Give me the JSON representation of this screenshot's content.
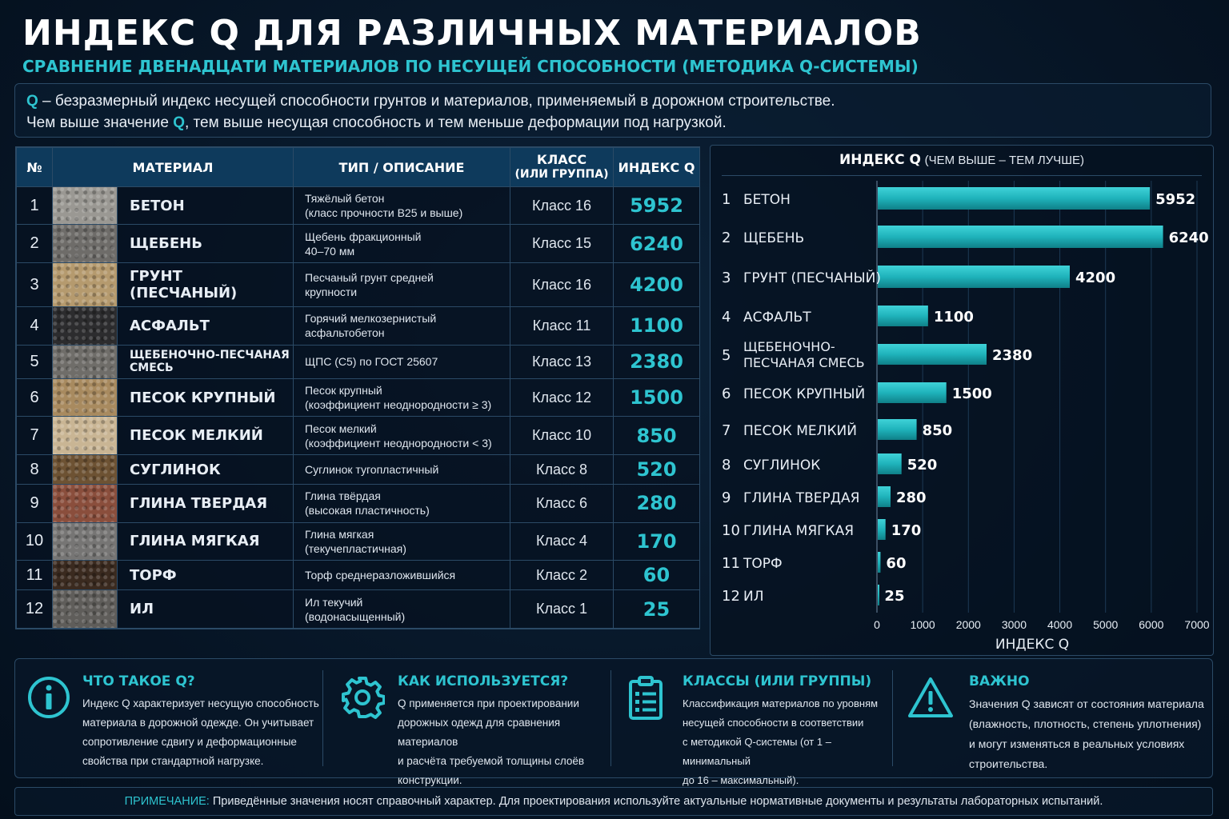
{
  "header": {
    "title": "ИНДЕКС Q ДЛЯ РАЗЛИЧНЫХ МАТЕРИАЛОВ",
    "subtitle": "СРАВНЕНИЕ ДВЕНАДЦАТИ МАТЕРИАЛОВ ПО НЕСУЩЕЙ СПОСОБНОСТИ (МЕТОДИКА Q-СИСТЕМЫ)"
  },
  "intro": {
    "q1": "Q",
    "line1": " – безразмерный индекс несущей способности грунтов и материалов, применяемый в дорожном строительстве.",
    "line2a": "Чем выше значение ",
    "q2": "Q",
    "line2b": ", тем выше несущая способность и тем меньше деформации под нагрузкой."
  },
  "table": {
    "headers": {
      "num": "№",
      "material": "МАТЕРИАЛ",
      "type": "ТИП / ОПИСАНИЕ",
      "class_line1": "КЛАСС",
      "class_line2": "(ИЛИ ГРУППА)",
      "q": "ИНДЕКС Q"
    },
    "rows": [
      {
        "num": "1",
        "material": "БЕТОН",
        "type1": "Тяжёлый бетон",
        "type2": "(класс прочности B25 и выше)",
        "cls": "Класс 16",
        "q": "5952"
      },
      {
        "num": "2",
        "material": "ЩЕБЕНЬ",
        "type1": "Щебень фракционный",
        "type2": "40–70 мм",
        "cls": "Класс 15",
        "q": "6240"
      },
      {
        "num": "3",
        "material": "ГРУНТ (ПЕСЧАНЫЙ)",
        "type1": "Песчаный грунт средней",
        "type2": "крупности",
        "cls": "Класс 16",
        "q": "4200"
      },
      {
        "num": "4",
        "material": "АСФАЛЬТ",
        "type1": "Горячий мелкозернистый",
        "type2": "асфальтобетон",
        "cls": "Класс 11",
        "q": "1100"
      },
      {
        "num": "5",
        "material": "ЩЕБЕНОЧНО-ПЕСЧАНАЯ СМЕСЬ",
        "type1": "ЩПС (С5) по ГОСТ 25607",
        "type2": "",
        "cls": "Класс 13",
        "q": "2380"
      },
      {
        "num": "6",
        "material": "ПЕСОК КРУПНЫЙ",
        "type1": "Песок крупный",
        "type2": "(коэффициент неоднородности ≥ 3)",
        "cls": "Класс 12",
        "q": "1500"
      },
      {
        "num": "7",
        "material": "ПЕСОК МЕЛКИЙ",
        "type1": "Песок мелкий",
        "type2": "(коэффициент неоднородности < 3)",
        "cls": "Класс 10",
        "q": "850"
      },
      {
        "num": "8",
        "material": "СУГЛИНОК",
        "type1": "Суглинок тугопластичный",
        "type2": "",
        "cls": "Класс 8",
        "q": "520"
      },
      {
        "num": "9",
        "material": "ГЛИНА ТВЕРДАЯ",
        "type1": "Глина твёрдая",
        "type2": "(высокая пластичность)",
        "cls": "Класс 6",
        "q": "280"
      },
      {
        "num": "10",
        "material": "ГЛИНА МЯГКАЯ",
        "type1": "Глина мягкая",
        "type2": "(текучепластичная)",
        "cls": "Класс 4",
        "q": "170"
      },
      {
        "num": "11",
        "material": "ТОРФ",
        "type1": "Торф среднеразложившийся",
        "type2": "",
        "cls": "Класс 2",
        "q": "60"
      },
      {
        "num": "12",
        "material": "ИЛ",
        "type1": "Ил текучий",
        "type2": "(водонасыщенный)",
        "cls": "Класс 1",
        "q": "25"
      }
    ],
    "swatch_colors": [
      "#9a9893",
      "#6e6c69",
      "#b59a6e",
      "#2c2c2e",
      "#6f6d69",
      "#a88a5f",
      "#c9b594",
      "#6d5233",
      "#8a4e3c",
      "#767574",
      "#3a2a1f",
      "#5f5d5a"
    ]
  },
  "chart_data": {
    "type": "bar",
    "orientation": "horizontal",
    "title": "ИНДЕКС Q",
    "title_note": "(ЧЕМ ВЫШЕ – ТЕМ ЛУЧШЕ)",
    "xlabel": "ИНДЕКС Q",
    "xlim": [
      0,
      7000
    ],
    "xticks": [
      "0",
      "1000",
      "2000",
      "3000",
      "4000",
      "5000",
      "6000",
      "7000"
    ],
    "categories": [
      {
        "num": "1",
        "label": [
          "БЕТОН"
        ]
      },
      {
        "num": "2",
        "label": [
          "ЩЕБЕНЬ"
        ]
      },
      {
        "num": "3",
        "label": [
          "ГРУНТ (ПЕСЧАНЫЙ)"
        ]
      },
      {
        "num": "4",
        "label": [
          "АСФАЛЬТ"
        ]
      },
      {
        "num": "5",
        "label": [
          "ЩЕБЕНОЧНО-",
          "ПЕСЧАНАЯ СМЕСЬ"
        ]
      },
      {
        "num": "6",
        "label": [
          "ПЕСОК КРУПНЫЙ"
        ]
      },
      {
        "num": "7",
        "label": [
          "ПЕСОК МЕЛКИЙ"
        ]
      },
      {
        "num": "8",
        "label": [
          "СУГЛИНОК"
        ]
      },
      {
        "num": "9",
        "label": [
          "ГЛИНА ТВЕРДАЯ"
        ]
      },
      {
        "num": "10",
        "label": [
          "ГЛИНА МЯГКАЯ"
        ]
      },
      {
        "num": "11",
        "label": [
          "ТОРФ"
        ]
      },
      {
        "num": "12",
        "label": [
          "ИЛ"
        ]
      }
    ],
    "values": [
      5952,
      6240,
      4200,
      1100,
      2380,
      1500,
      850,
      520,
      280,
      170,
      60,
      25
    ],
    "bar_color": "#1fb3bb",
    "grid": true
  },
  "info": [
    {
      "title": "ЧТО ТАКОЕ Q?",
      "icon": "info-icon",
      "lines": [
        "Индекс Q характеризует несущую способность",
        "материала в дорожной одежде. Он учитывает",
        "сопротивление сдвигу и деформационные",
        "свойства при стандартной нагрузке."
      ]
    },
    {
      "title": "КАК ИСПОЛЬЗУЕТСЯ?",
      "icon": "gear-icon",
      "lines": [
        "Q применяется при проектировании",
        "дорожных одежд для сравнения материалов",
        "и расчёта требуемой толщины слоёв",
        "конструкции."
      ]
    },
    {
      "title": "КЛАССЫ (ИЛИ ГРУППЫ)",
      "icon": "clipboard-icon",
      "lines": [
        "Классификация материалов по уровням",
        "несущей способности в соответствии",
        "с методикой Q-системы (от 1 – минимальный",
        "до 16 – максимальный)."
      ]
    },
    {
      "title": "ВАЖНО",
      "icon": "warning-icon",
      "lines": [
        "Значения Q зависят от состояния материала",
        "(влажность, плотность, степень уплотнения)",
        "и могут изменяться в реальных условиях",
        "строительства."
      ]
    }
  ],
  "note": {
    "label": "ПРИМЕЧАНИЕ:",
    "text": " Приведённые значения носят справочный характер. Для проектирования используйте актуальные нормативные документы и результаты лабораторных испытаний."
  },
  "colors": {
    "accent": "#2ec4d0",
    "background": "#071728",
    "border": "#2b4a66"
  }
}
